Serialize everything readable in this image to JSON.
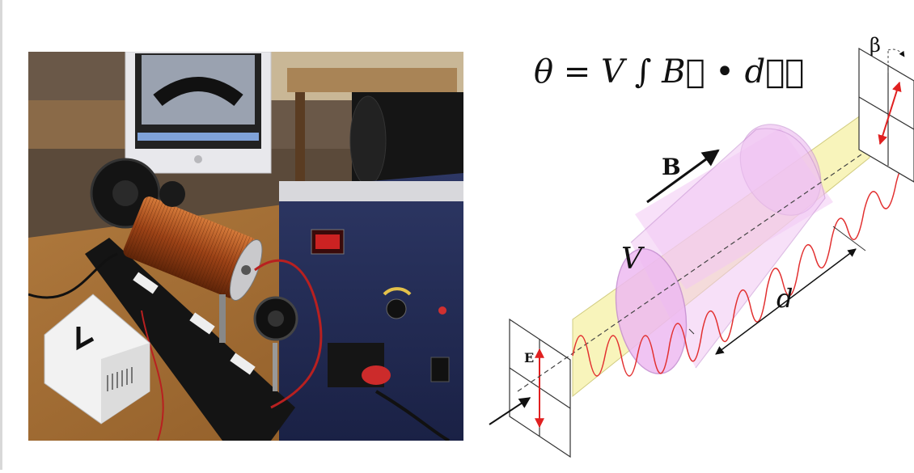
{
  "formula": {
    "text": "θ = V ∫ B⃗ • dℓ⃗"
  },
  "diagram": {
    "magnetic_field_label": "B",
    "electric_field_label": "E",
    "rotation_angle_label": "β",
    "medium_label": "V",
    "length_label": "d"
  },
  "colors": {
    "wave": "#e23030",
    "cylinder_fill": "#f2c8f4",
    "cylinder_stroke": "#c48cd0",
    "ribbon_fill": "#f7f3b0",
    "ribbon_stroke": "#c9c36a",
    "field_arrow": "#e02020"
  },
  "photo": {
    "description_icon": "lab-apparatus-photo"
  }
}
